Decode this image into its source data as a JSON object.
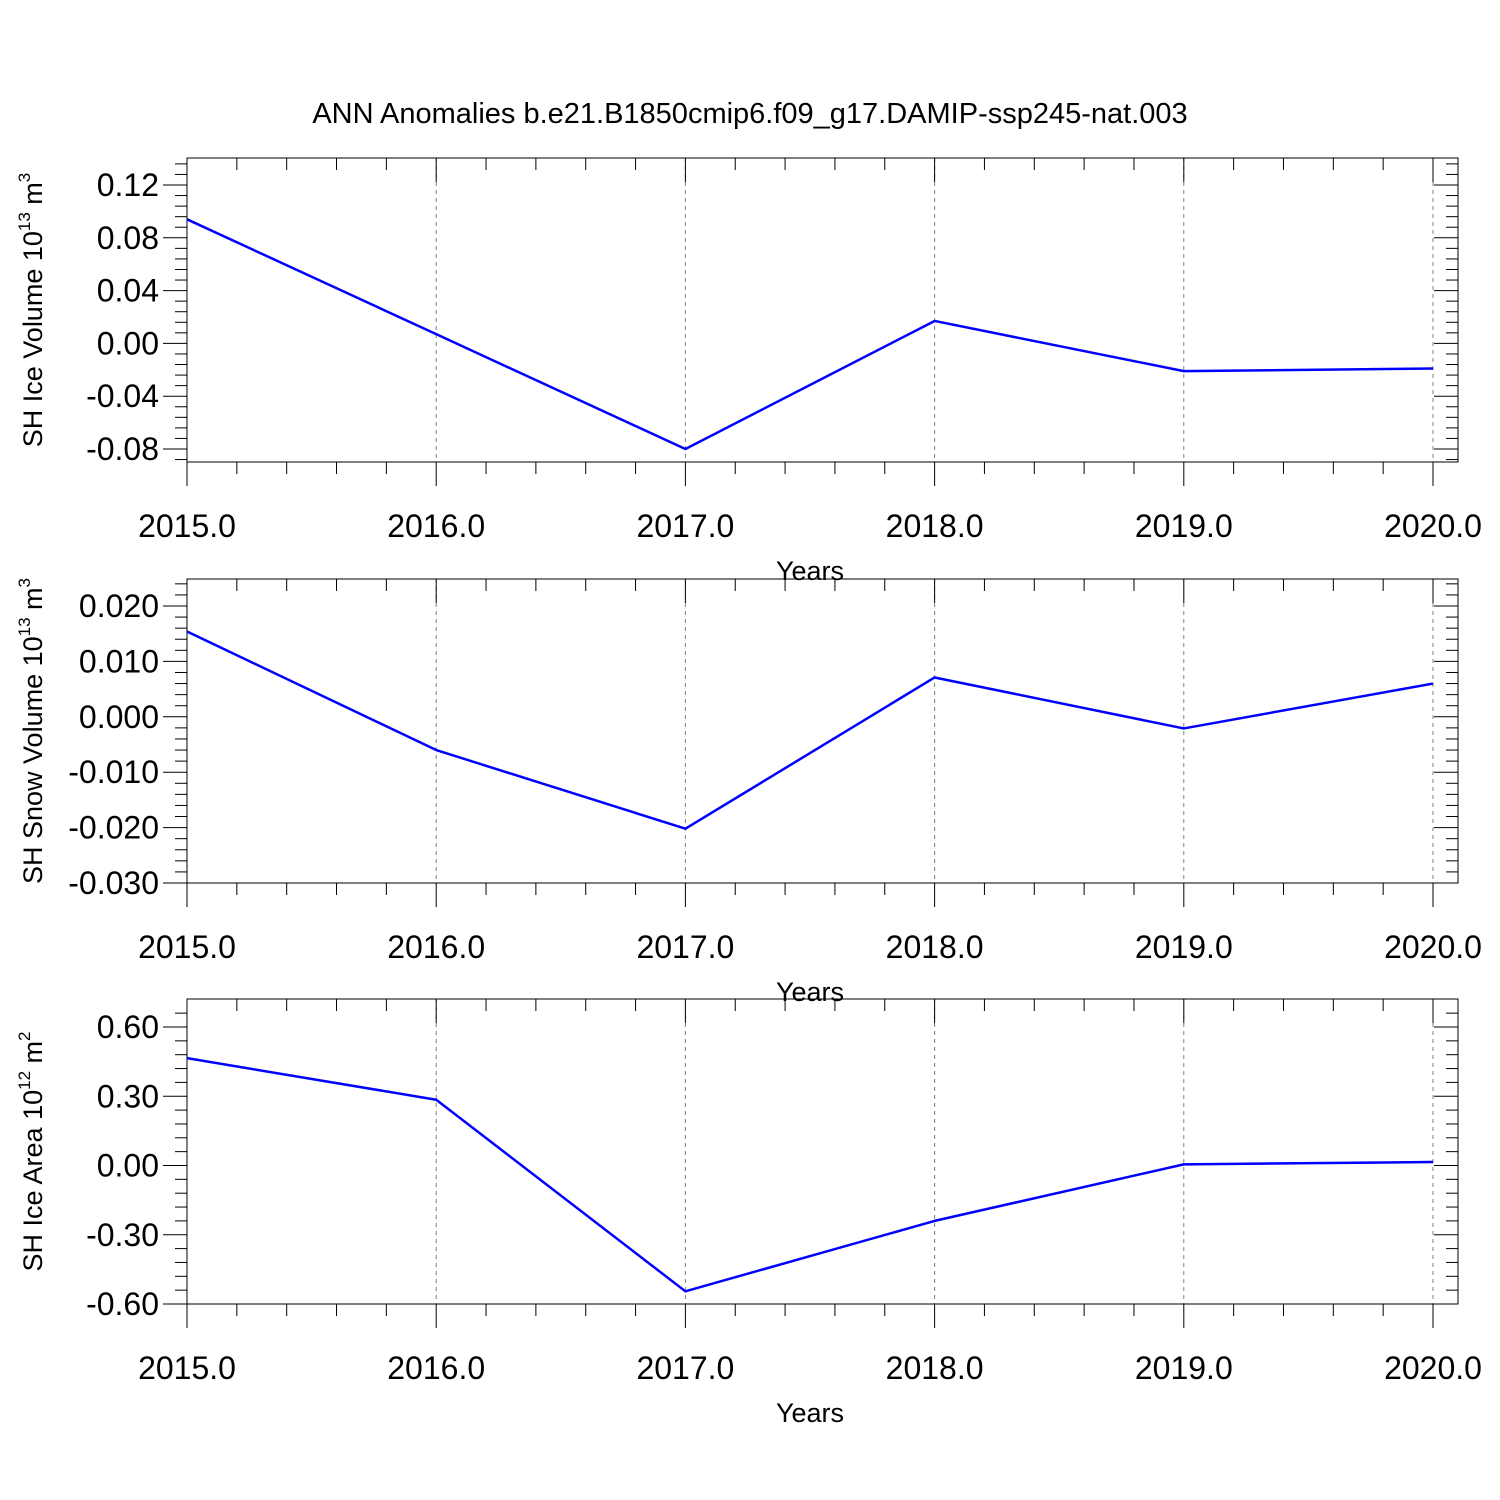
{
  "figure_title": "ANN Anomalies b.e21.B1850cmip6.f09_g17.DAMIP-ssp245-nat.003",
  "colors": {
    "series": "#0000ff",
    "axis": "#000000",
    "grid": "#808080"
  },
  "chart_data": [
    {
      "type": "line",
      "title": "",
      "xlabel": "Years",
      "ylabel_main": "SH Ice Volume 10",
      "ylabel_exp": "13",
      "ylabel_unit": " m",
      "ylabel_unit_exp": "3",
      "x": [
        2015,
        2016,
        2017,
        2018,
        2019,
        2020
      ],
      "x_tick_labels": [
        "2015.0",
        "2016.0",
        "2017.0",
        "2018.0",
        "2019.0",
        "2020.0"
      ],
      "y_ticks": [
        0.12,
        0.08,
        0.04,
        0.0,
        -0.04,
        -0.08
      ],
      "y_tick_labels": [
        "0.12",
        "0.08",
        "0.04",
        "0.00",
        "-0.04",
        "-0.08"
      ],
      "xlim": [
        2015,
        2020.1
      ],
      "ylim": [
        -0.09,
        0.13
      ],
      "grid": "vertical dashed at major x ticks",
      "series": [
        {
          "values": [
            0.094,
            0.007,
            -0.08,
            0.017,
            -0.021,
            -0.019
          ]
        }
      ]
    },
    {
      "type": "line",
      "title": "",
      "xlabel": "Years",
      "ylabel_main": "SH Snow Volume 10",
      "ylabel_exp": "13",
      "ylabel_unit": " m",
      "ylabel_unit_exp": "3",
      "x": [
        2015,
        2016,
        2017,
        2018,
        2019,
        2020
      ],
      "x_tick_labels": [
        "2015.0",
        "2016.0",
        "2017.0",
        "2018.0",
        "2019.0",
        "2020.0"
      ],
      "y_ticks": [
        0.02,
        0.01,
        0.0,
        -0.01,
        -0.02,
        -0.03
      ],
      "y_tick_labels": [
        "0.020",
        "0.010",
        "0.000",
        "-0.010",
        "-0.020",
        "-0.030"
      ],
      "xlim": [
        2015,
        2020.1
      ],
      "ylim": [
        -0.03,
        0.02
      ],
      "grid": "vertical dashed at major x ticks",
      "series": [
        {
          "values": [
            0.0154,
            -0.006,
            -0.0202,
            0.0071,
            -0.0021,
            0.006
          ]
        }
      ]
    },
    {
      "type": "line",
      "title": "",
      "xlabel": "Years",
      "ylabel_main": "SH Ice Area 10",
      "ylabel_exp": "12",
      "ylabel_unit": " m",
      "ylabel_unit_exp": "2",
      "x": [
        2015,
        2016,
        2017,
        2018,
        2019,
        2020
      ],
      "x_tick_labels": [
        "2015.0",
        "2016.0",
        "2017.0",
        "2018.0",
        "2019.0",
        "2020.0"
      ],
      "y_ticks": [
        0.6,
        0.3,
        0.0,
        -0.3,
        -0.6
      ],
      "y_tick_labels": [
        "0.60",
        "0.30",
        "0.00",
        "-0.30",
        "-0.60"
      ],
      "xlim": [
        2015,
        2020.1
      ],
      "ylim": [
        -0.6,
        0.6
      ],
      "grid": "vertical dashed at major x ticks",
      "series": [
        {
          "values": [
            0.465,
            0.285,
            -0.545,
            -0.24,
            0.005,
            0.015
          ]
        }
      ]
    }
  ]
}
